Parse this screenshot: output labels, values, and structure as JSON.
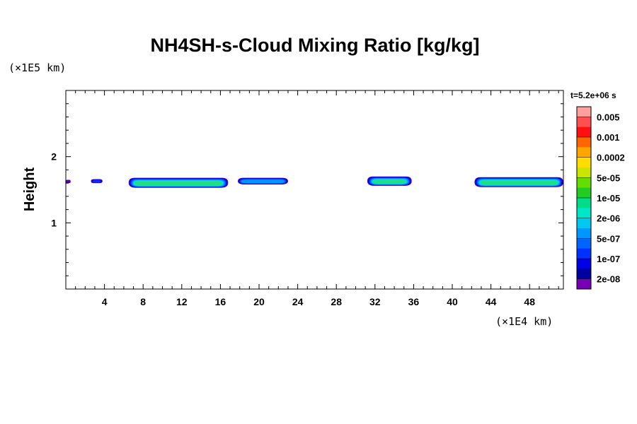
{
  "chart_data": {
    "type": "contour",
    "title": "NH4SH-s-Cloud Mixing Ratio [kg/kg]",
    "xlabel": "",
    "x_unit": "(×1E4 km)",
    "ylabel": "Height",
    "y_unit": "(×1E5 km)",
    "xlim": [
      0,
      51.5
    ],
    "ylim": [
      0,
      3
    ],
    "x_ticks": [
      4,
      8,
      12,
      16,
      20,
      24,
      28,
      32,
      36,
      40,
      44,
      48
    ],
    "y_ticks": [
      1,
      2
    ],
    "time_label": "t=5.2e+06 s",
    "colorbar": {
      "levels": [
        "0.005",
        "0.001",
        "0.0002",
        "5e-05",
        "1e-05",
        "2e-06",
        "5e-07",
        "1e-07",
        "2e-08"
      ],
      "colors_top_to_bottom": [
        "#ffa0a0",
        "#ff5050",
        "#ff1010",
        "#ff6600",
        "#ffa500",
        "#ffdd00",
        "#c8e600",
        "#66dd00",
        "#22cc22",
        "#00dd88",
        "#00e6c8",
        "#00c8f0",
        "#0096ff",
        "#0064ff",
        "#0032ff",
        "#0000e6",
        "#0000a0",
        "#7800b4"
      ]
    },
    "cloud_patches": [
      {
        "x": [
          -0.2,
          0.5
        ],
        "y_top": 1.65,
        "y_bottom": 1.6,
        "max_level": "2e-08"
      },
      {
        "x": [
          2.6,
          3.8
        ],
        "y_top": 1.66,
        "y_bottom": 1.6,
        "max_level": "1e-07"
      },
      {
        "x": [
          6.5,
          16.8
        ],
        "y_top": 1.68,
        "y_bottom": 1.53,
        "max_level": "2e-06"
      },
      {
        "x": [
          17.8,
          23.0
        ],
        "y_top": 1.68,
        "y_bottom": 1.58,
        "max_level": "5e-07"
      },
      {
        "x": [
          31.2,
          35.8
        ],
        "y_top": 1.7,
        "y_bottom": 1.56,
        "max_level": "2e-06"
      },
      {
        "x": [
          42.3,
          51.5
        ],
        "y_top": 1.69,
        "y_bottom": 1.54,
        "max_level": "2e-06"
      }
    ]
  }
}
